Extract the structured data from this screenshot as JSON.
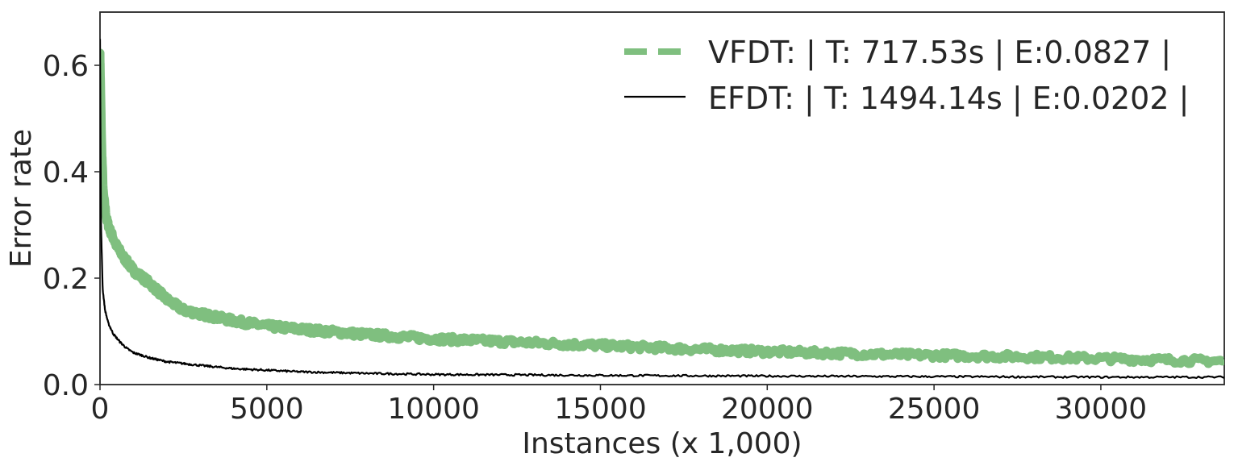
{
  "chart_data": {
    "type": "line",
    "xlabel": "Instances (x 1,000)",
    "ylabel": "Error rate",
    "xlim": [
      0,
      33700
    ],
    "ylim": [
      0,
      0.7
    ],
    "xticks": [
      0,
      5000,
      10000,
      15000,
      20000,
      25000,
      30000
    ],
    "yticks": [
      0.0,
      0.2,
      0.4,
      0.6
    ],
    "xtick_labels": [
      "0",
      "5000",
      "10000",
      "15000",
      "20000",
      "25000",
      "30000"
    ],
    "ytick_labels": [
      "0.0",
      "0.2",
      "0.4",
      "0.6"
    ],
    "grid": false,
    "legend_position": "top-right",
    "series": [
      {
        "name": "VFDT: | T: 717.53s |  E:0.0827 |",
        "color": "#7fbf7f",
        "style": "dashed",
        "x": [
          0,
          50,
          100,
          200,
          300,
          500,
          700,
          1000,
          1500,
          2000,
          2500,
          3000,
          4000,
          5000,
          6000,
          7000,
          8000,
          9000,
          10000,
          12000,
          14000,
          16000,
          18000,
          20000,
          22000,
          24000,
          26000,
          28000,
          30000,
          32000,
          33700
        ],
        "y": [
          0.62,
          0.45,
          0.36,
          0.31,
          0.29,
          0.26,
          0.24,
          0.215,
          0.19,
          0.16,
          0.14,
          0.133,
          0.12,
          0.11,
          0.104,
          0.099,
          0.094,
          0.09,
          0.086,
          0.081,
          0.076,
          0.071,
          0.066,
          0.062,
          0.059,
          0.056,
          0.054,
          0.052,
          0.049,
          0.046,
          0.044
        ]
      },
      {
        "name": "EFDT: | T: 1494.14s |  E:0.0202 |",
        "color": "#000000",
        "style": "solid",
        "x": [
          0,
          30,
          80,
          150,
          250,
          400,
          600,
          800,
          1000,
          1500,
          2000,
          3000,
          4000,
          5000,
          6000,
          8000,
          10000,
          13000,
          16000,
          20000,
          25000,
          30000,
          33700
        ],
        "y": [
          0.65,
          0.3,
          0.18,
          0.14,
          0.115,
          0.095,
          0.08,
          0.068,
          0.06,
          0.05,
          0.043,
          0.036,
          0.03,
          0.027,
          0.024,
          0.021,
          0.019,
          0.018,
          0.017,
          0.016,
          0.015,
          0.014,
          0.014
        ]
      }
    ]
  }
}
